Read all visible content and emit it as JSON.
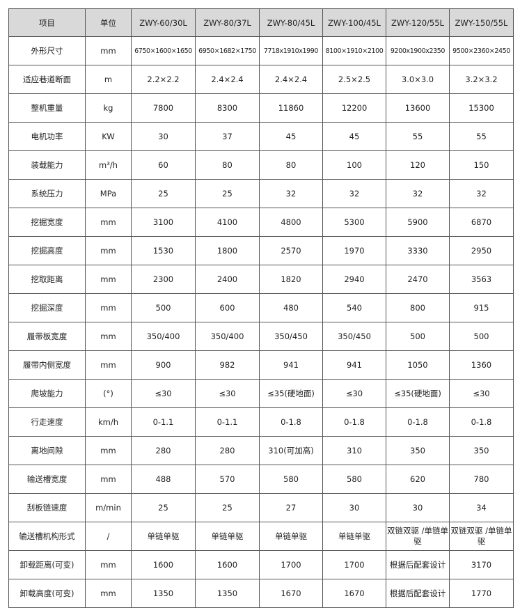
{
  "table": {
    "headers": [
      "项目",
      "单位",
      "ZWY-60/30L",
      "ZWY-80/37L",
      "ZWY-80/45L",
      "ZWY-100/45L",
      "ZWY-120/55L",
      "ZWY-150/55L"
    ],
    "rows": [
      [
        "外形尺寸",
        "mm",
        "6750×1600×1650",
        "6950×1682×1750",
        "7718x1910x1990",
        "8100×1910×2100",
        "9200x1900x2350",
        "9500×2360×2450"
      ],
      [
        "适应巷道断面",
        "m",
        "2.2×2.2",
        "2.4×2.4",
        "2.4×2.4",
        "2.5×2.5",
        "3.0×3.0",
        "3.2×3.2"
      ],
      [
        "整机重量",
        "kg",
        "7800",
        "8300",
        "11860",
        "12200",
        "13600",
        "15300"
      ],
      [
        "电机功率",
        "KW",
        "30",
        "37",
        "45",
        "45",
        "55",
        "55"
      ],
      [
        "装载能力",
        "m³/h",
        "60",
        "80",
        "80",
        "100",
        "120",
        "150"
      ],
      [
        "系统压力",
        "MPa",
        "25",
        "25",
        "32",
        "32",
        "32",
        "32"
      ],
      [
        "挖掘宽度",
        "mm",
        "3100",
        "4100",
        "4800",
        "5300",
        "5900",
        "6870"
      ],
      [
        "挖掘高度",
        "mm",
        "1530",
        "1800",
        "2570",
        "1970",
        "3330",
        "2950"
      ],
      [
        "挖取距离",
        "mm",
        "2300",
        "2400",
        "1820",
        "2940",
        "2470",
        "3563"
      ],
      [
        "挖掘深度",
        "mm",
        "500",
        "600",
        "480",
        "540",
        "800",
        "915"
      ],
      [
        "履带板宽度",
        "mm",
        "350/400",
        "350/400",
        "350/450",
        "350/450",
        "500",
        "500"
      ],
      [
        "履带内侧宽度",
        "mm",
        "900",
        "982",
        "941",
        "941",
        "1050",
        "1360"
      ],
      [
        "爬坡能力",
        "(°)",
        "≤30",
        "≤30",
        "≤35(硬地面)",
        "≤30",
        "≤35(硬地面)",
        "≤30"
      ],
      [
        "行走速度",
        "km/h",
        "0-1.1",
        "0-1.1",
        "0-1.8",
        "0-1.8",
        "0-1.8",
        "0-1.8"
      ],
      [
        "离地间隙",
        "mm",
        "280",
        "280",
        "310(可加高)",
        "310",
        "350",
        "350"
      ],
      [
        "输送槽宽度",
        "mm",
        "488",
        "570",
        "580",
        "580",
        "620",
        "780"
      ],
      [
        "刮板链速度",
        "m/min",
        "25",
        "25",
        "27",
        "30",
        "30",
        "34"
      ],
      [
        "输送槽机构形式",
        "/",
        "单链单驱",
        "单链单驱",
        "单链单驱",
        "单链单驱",
        "双链双驱 /单链单驱",
        "双链双驱 /单链单驱"
      ],
      [
        "卸载距离(可变)",
        "mm",
        "1600",
        "1600",
        "1700",
        "1700",
        "根据后配套设计",
        "3170"
      ],
      [
        "卸载高度(可变)",
        "mm",
        "1350",
        "1350",
        "1670",
        "1670",
        "根据后配套设计",
        "1770"
      ]
    ]
  }
}
